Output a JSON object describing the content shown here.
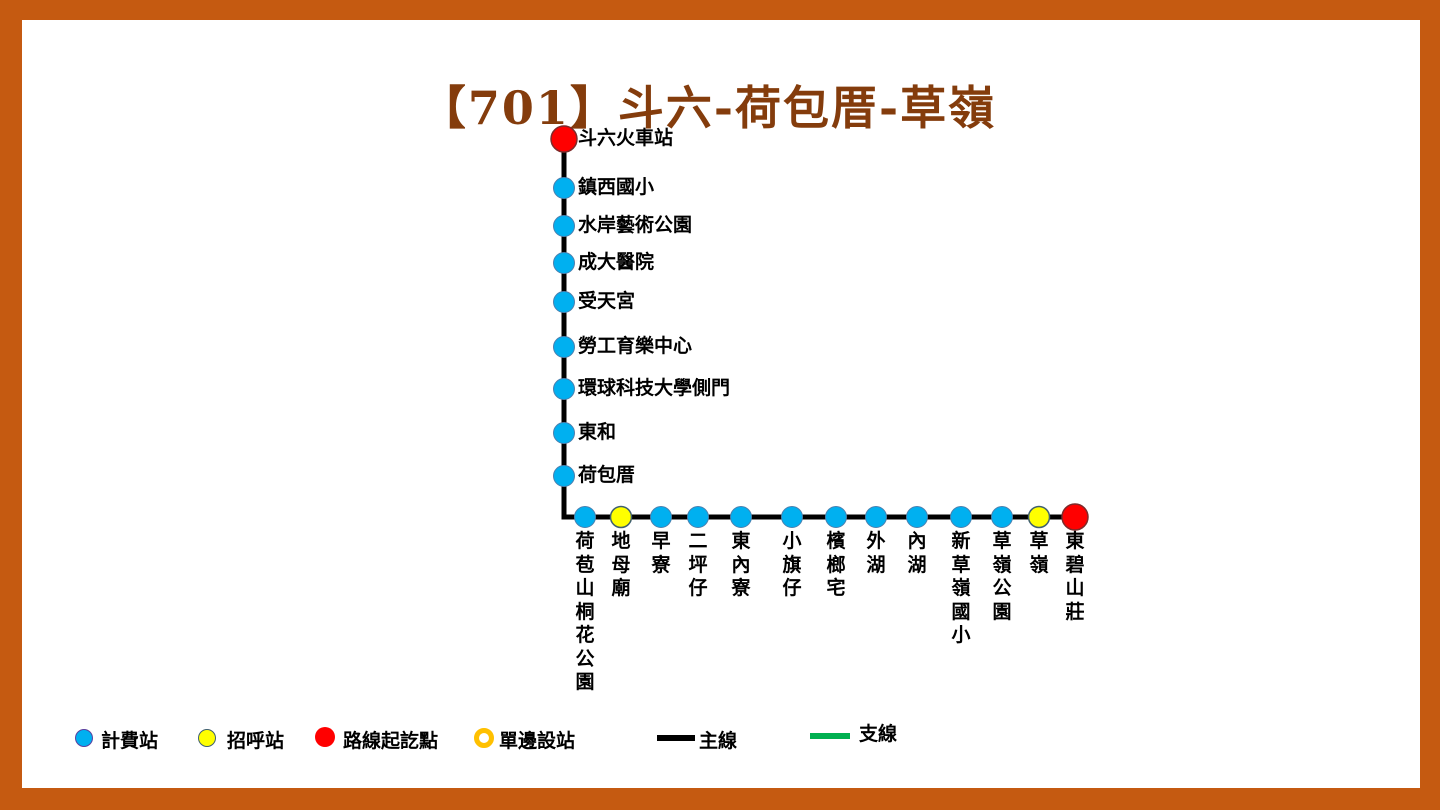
{
  "title": "【701】斗六-荷包厝-草嶺",
  "colors": {
    "frame": "#c55a11",
    "title": "#843c0c",
    "fare_stop": "#00b0f0",
    "flag_stop": "#ffff00",
    "terminus": "#ff0000",
    "one_side_stop": "#ffc000",
    "main_line": "#000000",
    "branch_line": "#00b050"
  },
  "vertical_stops": [
    {
      "name": "斗六火車站",
      "type": "terminus"
    },
    {
      "name": "鎮西國小",
      "type": "fare"
    },
    {
      "name": "水岸藝術公園",
      "type": "fare"
    },
    {
      "name": "成大醫院",
      "type": "fare"
    },
    {
      "name": "受天宮",
      "type": "fare"
    },
    {
      "name": "勞工育樂中心",
      "type": "fare"
    },
    {
      "name": "環球科技大學側門",
      "type": "fare"
    },
    {
      "name": "東和",
      "type": "fare"
    },
    {
      "name": "荷包厝",
      "type": "fare"
    }
  ],
  "horizontal_stops": [
    {
      "name": "荷苞山桐花公園",
      "type": "fare"
    },
    {
      "name": "地母廟",
      "type": "flag"
    },
    {
      "name": "早寮",
      "type": "fare"
    },
    {
      "name": "二坪仔",
      "type": "fare"
    },
    {
      "name": "東內寮",
      "type": "fare"
    },
    {
      "name": "小旗仔",
      "type": "fare"
    },
    {
      "name": "檳榔宅",
      "type": "fare"
    },
    {
      "name": "外湖",
      "type": "fare"
    },
    {
      "name": "內湖",
      "type": "fare"
    },
    {
      "name": "新草嶺國小",
      "type": "fare"
    },
    {
      "name": "草嶺公園",
      "type": "fare"
    },
    {
      "name": "草嶺",
      "type": "flag"
    },
    {
      "name": "東碧山莊",
      "type": "terminus"
    }
  ],
  "legend": {
    "fare_stop": "計費站",
    "flag_stop": "招呼站",
    "terminus": "路線起訖點",
    "one_side_stop": "單邊設站",
    "main_line": "主線",
    "branch_line": "支線"
  }
}
